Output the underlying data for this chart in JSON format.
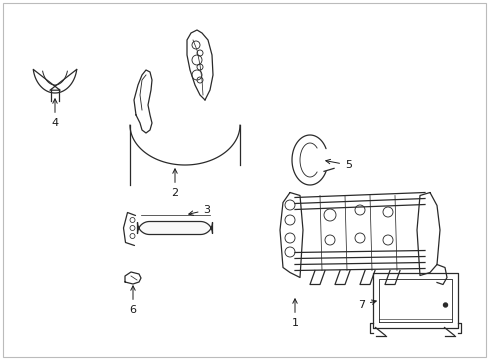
{
  "background_color": "#ffffff",
  "line_color": "#2a2a2a",
  "label_color": "#1a1a1a",
  "figsize": [
    4.89,
    3.6
  ],
  "dpi": 100,
  "border_color": "#bbbbbb",
  "lw": 0.9
}
